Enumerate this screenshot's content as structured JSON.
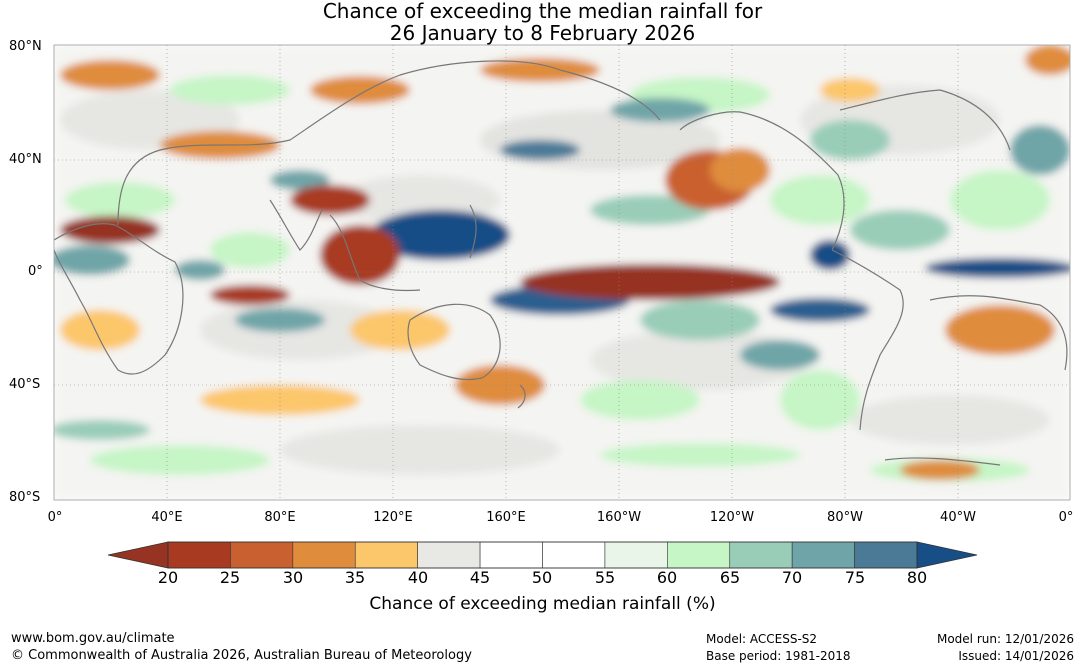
{
  "title": {
    "line1": "Chance of exceeding the median rainfall for",
    "line2": "26 January to 8 February 2026"
  },
  "map": {
    "lat_labels": [
      "80°N",
      "40°N",
      "0°",
      "40°S",
      "80°S"
    ],
    "lon_labels": [
      "0°",
      "40°E",
      "80°E",
      "120°E",
      "160°E",
      "160°W",
      "120°W",
      "80°W",
      "40°W",
      "0°"
    ]
  },
  "colorbar": {
    "ticks": [
      "20",
      "25",
      "30",
      "35",
      "40",
      "45",
      "50",
      "55",
      "60",
      "65",
      "70",
      "75",
      "80"
    ],
    "colors": [
      "#a83a22",
      "#c9602f",
      "#df8c3d",
      "#fcc66a",
      "#e8e8e4",
      "#ffffff",
      "#ffffff",
      "#e8f5e8",
      "#c6f5c6",
      "#99cdb8",
      "#6fa5a8",
      "#4b7a97"
    ],
    "low_color": "#963322",
    "high_color": "#174e86",
    "label": "Chance of exceeding median rainfall (%)"
  },
  "footer": {
    "url": "www.bom.gov.au/climate",
    "copyright": "© Commonwealth of Australia 2026, Australian Bureau of Meteorology",
    "model": "Model: ACCESS-S2",
    "base_period": "Base period: 1981-2018",
    "model_run": "Model run: 12/01/2026",
    "issued": "Issued: 14/01/2026"
  }
}
